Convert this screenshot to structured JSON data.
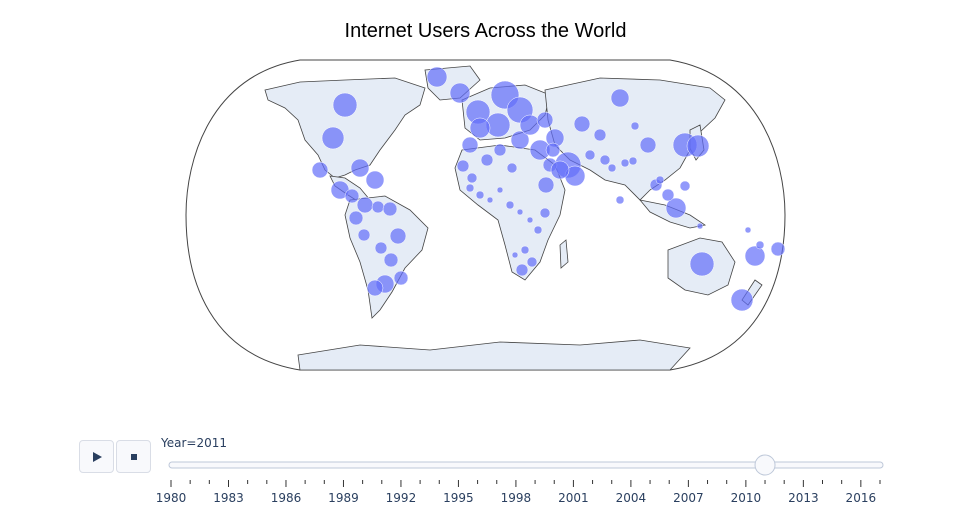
{
  "title": "Internet Users Across the World",
  "map": {
    "projection": "natural earth",
    "land_color": "#e5ecf6",
    "marker_color": "#636efa",
    "bubbles_note": "Bubble markers for countries (relative internet users)"
  },
  "controls": {
    "play_icon": "play-icon",
    "stop_icon": "stop-icon"
  },
  "slider": {
    "current_label": "Year=2011",
    "current_value": 2011,
    "min": 1980,
    "max": 2017,
    "tick_labels": [
      "1980",
      "1983",
      "1986",
      "1989",
      "1992",
      "1995",
      "1998",
      "2001",
      "2004",
      "2007",
      "2010",
      "2013",
      "2016"
    ]
  }
}
